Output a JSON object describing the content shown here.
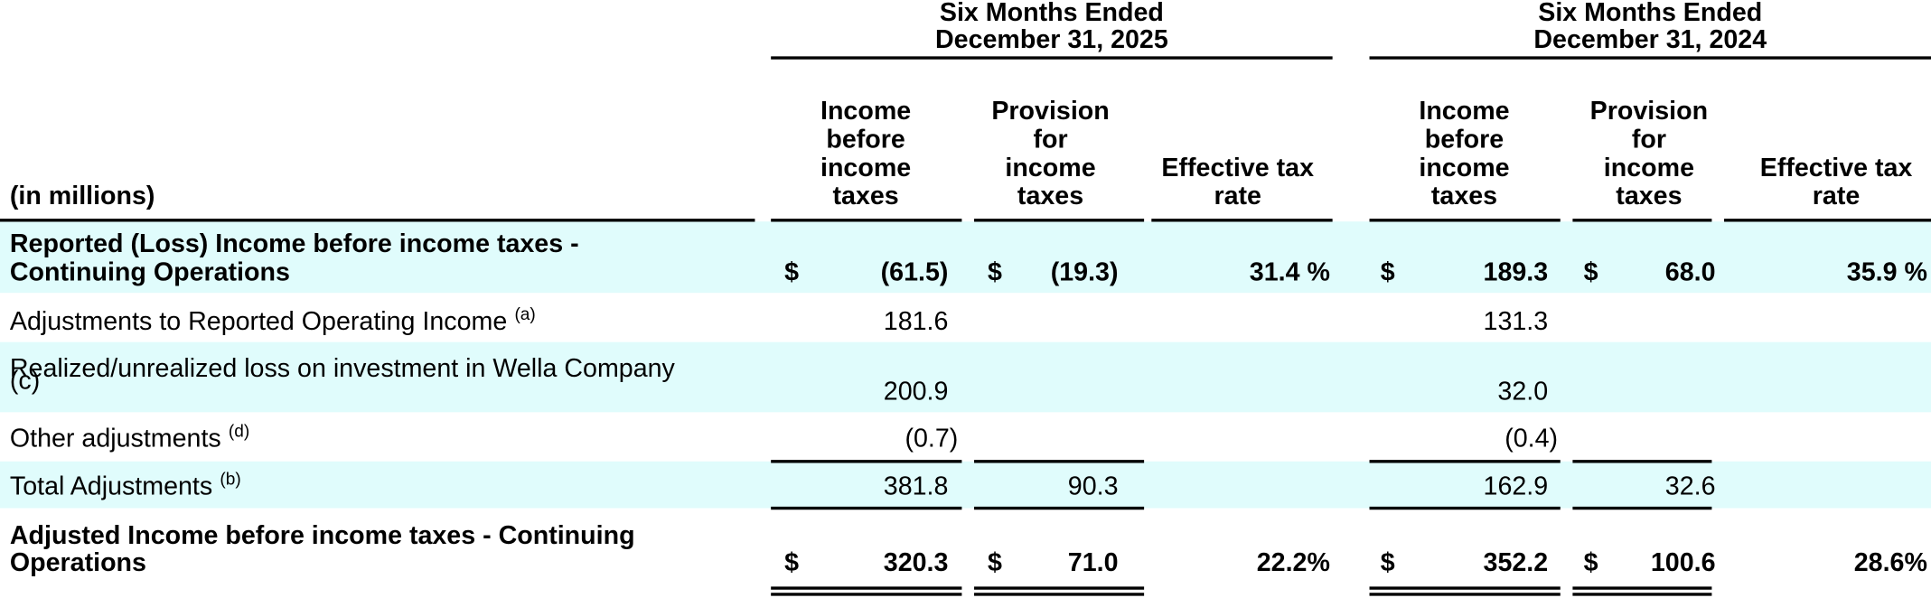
{
  "header": {
    "unit_label": "(in millions)",
    "groups": [
      {
        "title": [
          "Six Months Ended",
          "December 31, 2025"
        ],
        "columns": [
          [
            "Income",
            "before",
            "income",
            "taxes"
          ],
          [
            "Provision",
            "for",
            "income",
            "taxes"
          ],
          [
            "Effective tax",
            "rate"
          ]
        ]
      },
      {
        "title": [
          "Six Months Ended",
          "December 31, 2024"
        ],
        "columns": [
          [
            "Income",
            "before",
            "income",
            "taxes"
          ],
          [
            "Provision",
            "for",
            "income",
            "taxes"
          ],
          [
            "Effective tax",
            "rate"
          ]
        ]
      }
    ]
  },
  "rows": [
    {
      "label": [
        "Reported (Loss) Income before income taxes -",
        "Continuing Operations"
      ],
      "bold": true,
      "cells": [
        {
          "currency": "$",
          "amount": "(61.5)"
        },
        {
          "currency": "$",
          "amount": "(19.3)"
        },
        "31.4 %",
        {
          "currency": "$",
          "amount": "189.3"
        },
        {
          "currency": "$",
          "amount": "68.0"
        },
        "35.9 %"
      ]
    },
    {
      "label": [
        "Adjustments to Reported Operating Income"
      ],
      "note": "(a)",
      "cells": [
        "181.6",
        null,
        null,
        "131.3",
        null,
        null
      ]
    },
    {
      "label": [
        "Realized/unrealized loss on investment in Wella Company"
      ],
      "note": "(c)",
      "cells": [
        "200.9",
        null,
        null,
        "32.0",
        null,
        null
      ]
    },
    {
      "label": [
        "Other adjustments"
      ],
      "note": "(d)",
      "cells": [
        "(0.7)",
        null,
        null,
        "(0.4)",
        null,
        null
      ]
    },
    {
      "label": [
        "Total Adjustments"
      ],
      "note": "(b)",
      "cells": [
        "381.8",
        "90.3",
        null,
        "162.9",
        "32.6",
        null
      ]
    },
    {
      "label": [
        "Adjusted Income before income taxes - Continuing",
        "Operations"
      ],
      "bold": true,
      "cells": [
        {
          "currency": "$",
          "amount": "320.3"
        },
        {
          "currency": "$",
          "amount": "71.0"
        },
        "22.2%",
        {
          "currency": "$",
          "amount": "352.2"
        },
        {
          "currency": "$",
          "amount": "100.6"
        },
        "28.6%"
      ]
    }
  ]
}
